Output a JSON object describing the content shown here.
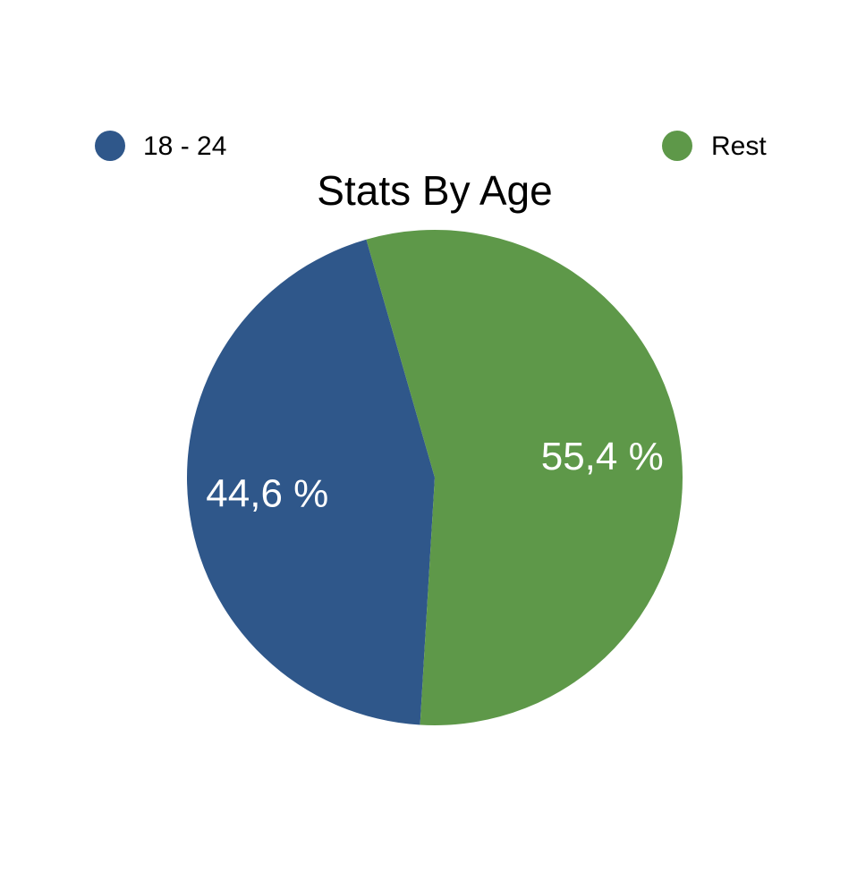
{
  "chart_data": {
    "type": "pie",
    "title": "Stats By Age",
    "categories": [
      "18 - 24",
      "Rest"
    ],
    "values": [
      44.6,
      55.4
    ],
    "value_labels": [
      "44,6 %",
      "55,4 %"
    ],
    "colors": [
      "#2f578a",
      "#5e9849"
    ]
  }
}
